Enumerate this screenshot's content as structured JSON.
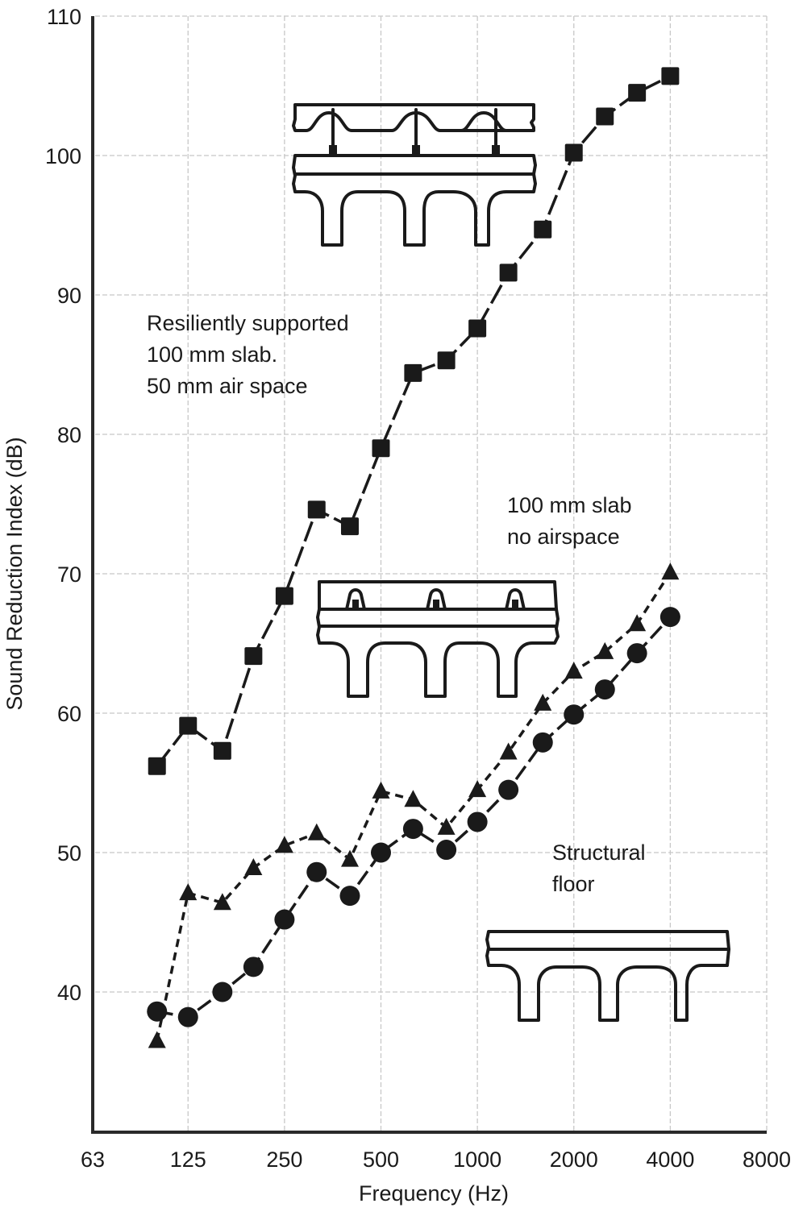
{
  "chart_data": {
    "type": "line",
    "title": "",
    "xlabel": "Frequency (Hz)",
    "ylabel": "Sound Reduction Index (dB)",
    "x_scale": "log",
    "x_tick_labels": [
      "63",
      "125",
      "250",
      "500",
      "1000",
      "2000",
      "4000",
      "8000"
    ],
    "y_tick_labels": [
      "40",
      "50",
      "60",
      "70",
      "80",
      "90",
      "100",
      "110"
    ],
    "xlim": [
      63,
      8000
    ],
    "ylim": [
      30,
      110
    ],
    "grid": true,
    "legend": "none (series identified by inline annotations and floor section diagrams)",
    "x": [
      100,
      125,
      160,
      200,
      250,
      315,
      400,
      500,
      630,
      800,
      1000,
      1250,
      1600,
      2000,
      2500,
      3150,
      4000
    ],
    "series": [
      {
        "name": "Resiliently supported 100 mm slab. 50 mm air space",
        "marker": "square",
        "line": "solid-dashed",
        "values": [
          56.2,
          59.1,
          57.3,
          64.1,
          68.4,
          74.6,
          73.4,
          79.0,
          84.4,
          85.3,
          87.6,
          91.6,
          94.7,
          100.2,
          102.8,
          104.5,
          105.7
        ]
      },
      {
        "name": "100 mm slab no airspace",
        "marker": "triangle",
        "line": "dashed",
        "values": [
          36.5,
          47.1,
          46.4,
          48.9,
          50.5,
          51.4,
          49.5,
          54.4,
          53.8,
          51.8,
          54.5,
          57.2,
          60.7,
          63.0,
          64.4,
          66.4,
          70.1
        ]
      },
      {
        "name": "Structural floor",
        "marker": "circle",
        "line": "long-dashed",
        "values": [
          38.6,
          38.2,
          40.0,
          41.8,
          45.2,
          48.6,
          46.9,
          50.0,
          51.7,
          50.2,
          52.2,
          54.5,
          57.9,
          59.9,
          61.7,
          64.3,
          66.9
        ]
      }
    ],
    "annotations": [
      {
        "id": "resilient",
        "lines": [
          "Resiliently supported",
          "100 mm slab.",
          "50 mm air space"
        ]
      },
      {
        "id": "no_air",
        "lines": [
          "100 mm slab",
          "no airspace"
        ]
      },
      {
        "id": "structural",
        "lines": [
          "Structural",
          "floor"
        ]
      }
    ]
  },
  "colors": {
    "ink": "#1a1a1a",
    "grid": "#c8c8c8",
    "background": "#ffffff"
  }
}
